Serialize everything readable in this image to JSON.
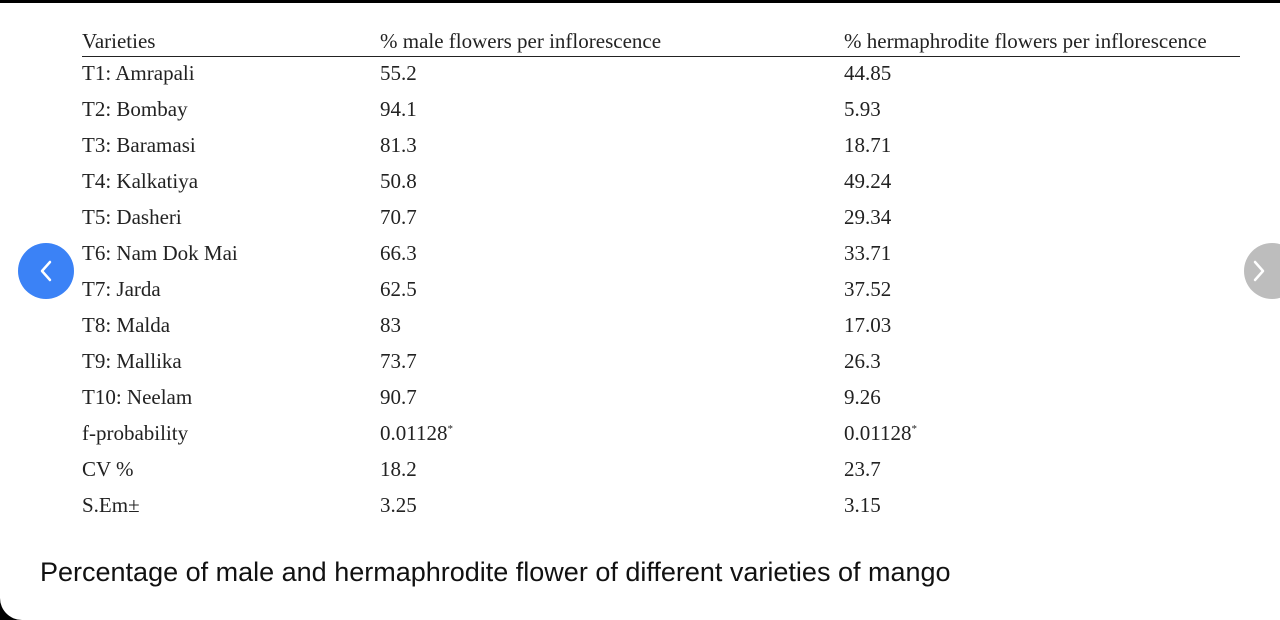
{
  "table": {
    "headers": [
      "Varieties",
      "% male flowers per inflorescence",
      "% hermaphrodite flowers per inflorescence"
    ],
    "rows": [
      {
        "variety": "T1: Amrapali",
        "male": "55.2",
        "herm": "44.85"
      },
      {
        "variety": "T2: Bombay",
        "male": "94.1",
        "herm": "5.93"
      },
      {
        "variety": "T3: Baramasi",
        "male": "81.3",
        "herm": "18.71"
      },
      {
        "variety": "T4: Kalkatiya",
        "male": "50.8",
        "herm": "49.24"
      },
      {
        "variety": "T5: Dasheri",
        "male": "70.7",
        "herm": "29.34"
      },
      {
        "variety": "T6: Nam Dok Mai",
        "male": "66.3",
        "herm": "33.71"
      },
      {
        "variety": "T7: Jarda",
        "male": "62.5",
        "herm": "37.52"
      },
      {
        "variety": "T8: Malda",
        "male": "83",
        "herm": "17.03"
      },
      {
        "variety": "T9: Mallika",
        "male": "73.7",
        "herm": "26.3"
      },
      {
        "variety": "T10: Neelam",
        "male": "90.7",
        "herm": "9.26"
      },
      {
        "variety": "f-probability",
        "male": "0.01128",
        "herm": "0.01128",
        "male_sup": "*",
        "herm_sup": "*"
      },
      {
        "variety": "CV %",
        "male": "18.2",
        "herm": "23.7"
      },
      {
        "variety": "S.Em±",
        "male": "3.25",
        "herm": "3.15"
      }
    ]
  },
  "caption": "Percentage of male and hermaphrodite flower of different varieties of mango",
  "nav": {
    "prev_icon": "chevron-left-icon",
    "next_icon": "chevron-right-icon",
    "prev_color": "#3b82f6",
    "next_color": "#bdbdbd"
  }
}
